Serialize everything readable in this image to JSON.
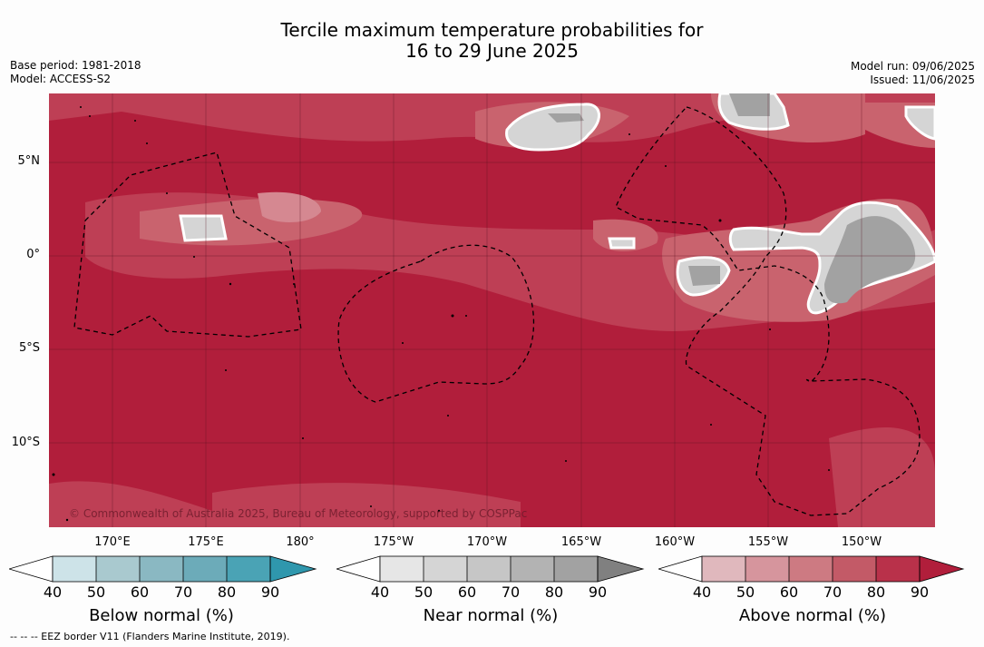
{
  "title_line1": "Tercile maximum temperature probabilities for",
  "title_line2": "16 to 29 June 2025",
  "base_period": "Base period: 1981-2018",
  "model": "Model: ACCESS-S2",
  "model_run": "Model run: 09/06/2025",
  "issued": "Issued: 11/06/2025",
  "lat_labels": [
    "5°N",
    "0°",
    "5°S",
    "10°S"
  ],
  "lon_labels": [
    "170°E",
    "175°E",
    "180°",
    "175°W",
    "170°W",
    "165°W",
    "160°W",
    "155°W",
    "150°W"
  ],
  "copyright": "© Commonwealth of Australia 2025, Bureau of Meteorology, supported by COSPPac",
  "colorbars": [
    {
      "label": "Below normal (%)",
      "ticks": [
        "40",
        "50",
        "60",
        "70",
        "80",
        "90"
      ],
      "colors": [
        "#cde3e8",
        "#a9c9cf",
        "#8ab8c2",
        "#6cabb9",
        "#4aa3b5",
        "#2f97ad"
      ]
    },
    {
      "label": "Near normal (%)",
      "ticks": [
        "40",
        "50",
        "60",
        "70",
        "80",
        "90"
      ],
      "colors": [
        "#e6e6e6",
        "#d5d5d5",
        "#c6c6c6",
        "#b3b3b3",
        "#a2a2a2",
        "#808080"
      ]
    },
    {
      "label": "Above normal (%)",
      "ticks": [
        "40",
        "50",
        "60",
        "70",
        "80",
        "90"
      ],
      "colors": [
        "#e0b8bd",
        "#d6959d",
        "#cd7a82",
        "#c35a67",
        "#b9314a",
        "#b11e3b"
      ]
    }
  ],
  "footer": "--  --  -- EEZ border V11 (Flanders Marine Institute, 2019).",
  "colors": {
    "above_90": "#b11e3b",
    "above_80": "#be3f55",
    "above_70": "#c9636e",
    "above_60": "#d58891",
    "near_normal": "#a2a2a2",
    "white": "#ffffff"
  }
}
